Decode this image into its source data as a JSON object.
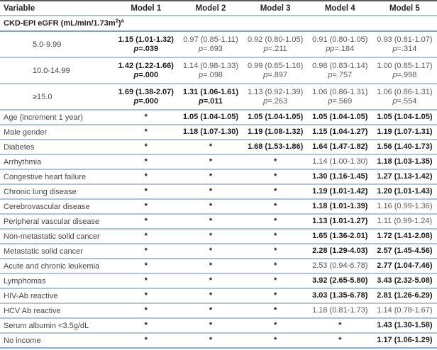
{
  "table": {
    "columns": [
      "Variable",
      "Model 1",
      "Model 2",
      "Model 3",
      "Model 4",
      "Model 5"
    ],
    "section_header": {
      "text": "CKD-EPI eGFR (mL/min/1.73m",
      "sup_unit": "2",
      "close": ")",
      "sup_note": "a"
    },
    "colors": {
      "top_border": "#5a5a5a",
      "row_divider": "#abc3dd",
      "section_divider": "#7aa2ca",
      "header_divider": "#a9c1dc",
      "bottom_border": "#8cb0d4",
      "bold_text": "#1b1b1b",
      "regular_text": "#595959",
      "label_text": "#474747"
    },
    "rows": [
      {
        "label": "5.0-9.99",
        "indent": true,
        "cells": [
          {
            "value": "1.15 (1.01-1.32)",
            "p": "p=.039",
            "bold": true
          },
          {
            "value": "0.97 (0.85-1.11)",
            "p": "p=.693",
            "bold": false
          },
          {
            "value": "0.92 (0.80-1.05)",
            "p": "p=.211",
            "bold": false
          },
          {
            "value": "0.91 (0.80-1.05)",
            "p": "pp=.184",
            "bold": false
          },
          {
            "value": "0.93 (0.81-1.07)",
            "p": "p=.314",
            "bold": false
          }
        ]
      },
      {
        "label": "10.0-14.99",
        "indent": true,
        "cells": [
          {
            "value": "1.42 (1.22-1.66)",
            "p": "p=.000",
            "bold": true
          },
          {
            "value": "1.14 (0.98-1.33)",
            "p": "p=.098",
            "bold": false
          },
          {
            "value": "0.99 (0.85-1.16)",
            "p": "p=.897",
            "bold": false
          },
          {
            "value": "0.98 (0.83-1.14)",
            "p": "p=.757",
            "bold": false
          },
          {
            "value": "1.00 (0.85-1.17)",
            "p": "p=.998",
            "bold": false
          }
        ]
      },
      {
        "label": "≥15.0",
        "indent": true,
        "cells": [
          {
            "value": "1.69 (1.38-2.07)",
            "p": "p=.000",
            "bold": true
          },
          {
            "value": "1.31 (1.06-1.61)",
            "p": "p=.011",
            "bold": true
          },
          {
            "value": "1.13 (0.92-1.39)",
            "p": "p=.263",
            "bold": false
          },
          {
            "value": "1.06 (0.86-1.31)",
            "p": "p=.569",
            "bold": false
          },
          {
            "value": "1.06 (0.86-1.31)",
            "p": "p=.554",
            "bold": false
          }
        ]
      },
      {
        "label": "Age (increment 1 year)",
        "cells": [
          {
            "value": "*",
            "bold": true
          },
          {
            "value": "1.05 (1.04-1.05)",
            "bold": true
          },
          {
            "value": "1.05 (1.04-1.05)",
            "bold": true
          },
          {
            "value": "1.05 (1.04-1.05)",
            "bold": true
          },
          {
            "value": "1.05 (1.04-1.05)",
            "bold": true
          }
        ]
      },
      {
        "label": "Male gender",
        "cells": [
          {
            "value": "*",
            "bold": true
          },
          {
            "value": "1.18 (1.07-1.30)",
            "bold": true
          },
          {
            "value": "1.19 (1.08-1.32)",
            "bold": true
          },
          {
            "value": "1.15 (1.04-1.27)",
            "bold": true
          },
          {
            "value": "1.19 (1.07-1.31)",
            "bold": true
          }
        ]
      },
      {
        "label": "Diabetes",
        "cells": [
          {
            "value": "*",
            "bold": true
          },
          {
            "value": "*",
            "bold": true
          },
          {
            "value": "1.68 (1.53-1.86)",
            "bold": true
          },
          {
            "value": "1.64 (1.47-1.82)",
            "bold": true
          },
          {
            "value": "1.56 (1.40-1.73)",
            "bold": true
          }
        ]
      },
      {
        "label": "Arrhythmia",
        "cells": [
          {
            "value": "*",
            "bold": true
          },
          {
            "value": "*",
            "bold": true
          },
          {
            "value": "*",
            "bold": true
          },
          {
            "value": "1.14 (1.00-1.30)",
            "bold": false
          },
          {
            "value": "1.18 (1.03-1.35)",
            "bold": true
          }
        ]
      },
      {
        "label": "Congestive heart failure",
        "cells": [
          {
            "value": "*",
            "bold": true
          },
          {
            "value": "*",
            "bold": true
          },
          {
            "value": "*",
            "bold": true
          },
          {
            "value": "1.30 (1.16-1.45)",
            "bold": true
          },
          {
            "value": "1.27 (1.13-1.42)",
            "bold": true
          }
        ]
      },
      {
        "label": "Chronic lung disease",
        "cells": [
          {
            "value": "*",
            "bold": true
          },
          {
            "value": "*",
            "bold": true
          },
          {
            "value": "*",
            "bold": true
          },
          {
            "value": "1.19 (1.01-1.42)",
            "bold": true
          },
          {
            "value": "1.20 (1.01-1.43)",
            "bold": true
          }
        ]
      },
      {
        "label": "Cerebrovascular disease",
        "cells": [
          {
            "value": "*",
            "bold": true
          },
          {
            "value": "*",
            "bold": true
          },
          {
            "value": "*",
            "bold": true
          },
          {
            "value": "1.18 (1.01-1.39)",
            "bold": true
          },
          {
            "value": "1.16 (0.99-1.36)",
            "bold": false
          }
        ]
      },
      {
        "label": "Peripheral vascular disease",
        "cells": [
          {
            "value": "*",
            "bold": true
          },
          {
            "value": "*",
            "bold": true
          },
          {
            "value": "*",
            "bold": true
          },
          {
            "value": "1.13 (1.01-1.27)",
            "bold": true
          },
          {
            "value": "1.11 (0.99-1.24)",
            "bold": false
          }
        ]
      },
      {
        "label": "Non-metastatic solid cancer",
        "cells": [
          {
            "value": "*",
            "bold": true
          },
          {
            "value": "*",
            "bold": true
          },
          {
            "value": "*",
            "bold": true
          },
          {
            "value": "1.65 (1.36-2.01)",
            "bold": true
          },
          {
            "value": "1.72 (1.41-2.08)",
            "bold": true
          }
        ]
      },
      {
        "label": "Metastatic solid cancer",
        "cells": [
          {
            "value": "*",
            "bold": true
          },
          {
            "value": "*",
            "bold": true
          },
          {
            "value": "*",
            "bold": true
          },
          {
            "value": "2.28 (1.29-4.03)",
            "bold": true
          },
          {
            "value": "2.57 (1.45-4.56)",
            "bold": true
          }
        ]
      },
      {
        "label": "Acute and chronic leukemia",
        "cells": [
          {
            "value": "*",
            "bold": true
          },
          {
            "value": "*",
            "bold": true
          },
          {
            "value": "*",
            "bold": true
          },
          {
            "value": "2.53 (0.94-6.78)",
            "bold": false
          },
          {
            "value": "2.77 (1.04-7.46)",
            "bold": true
          }
        ]
      },
      {
        "label": "Lymphomas",
        "cells": [
          {
            "value": "*",
            "bold": true
          },
          {
            "value": "*",
            "bold": true
          },
          {
            "value": "*",
            "bold": true
          },
          {
            "value": "3.92 (2.65-5.80)",
            "bold": true
          },
          {
            "value": "3.43 (2.32-5.08)",
            "bold": true
          }
        ]
      },
      {
        "label": "HIV-Ab reactive",
        "cells": [
          {
            "value": "*",
            "bold": true
          },
          {
            "value": "*",
            "bold": true
          },
          {
            "value": "*",
            "bold": true
          },
          {
            "value": "3.03 (1.35-6.78)",
            "bold": true
          },
          {
            "value": "2.81 (1.26-6.29)",
            "bold": true
          }
        ]
      },
      {
        "label": "HCV Ab reactive",
        "cells": [
          {
            "value": "*",
            "bold": true
          },
          {
            "value": "*",
            "bold": true
          },
          {
            "value": "*",
            "bold": true
          },
          {
            "value": "1.18 (0.81-1.73)",
            "bold": false
          },
          {
            "value": "1.14 (0.78-1.67)",
            "bold": false
          }
        ]
      },
      {
        "label": "Serum albumin <3.5g/dL",
        "cells": [
          {
            "value": "*",
            "bold": true
          },
          {
            "value": "*",
            "bold": true
          },
          {
            "value": "*",
            "bold": true
          },
          {
            "value": "*",
            "bold": true
          },
          {
            "value": "1.43 (1.30-1.58)",
            "bold": true
          }
        ]
      },
      {
        "label": "No income",
        "cells": [
          {
            "value": "*",
            "bold": true
          },
          {
            "value": "*",
            "bold": true
          },
          {
            "value": "*",
            "bold": true
          },
          {
            "value": "*",
            "bold": true
          },
          {
            "value": "1.17 (1.06-1.29)",
            "bold": true
          }
        ]
      }
    ]
  }
}
